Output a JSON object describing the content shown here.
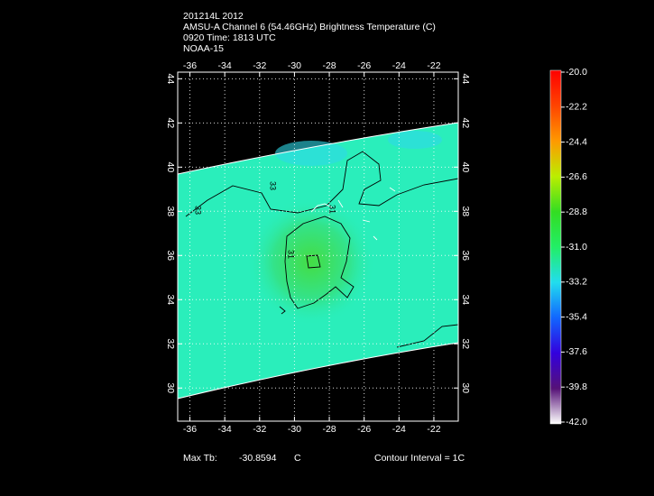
{
  "header": {
    "lines": [
      "201214L 2012",
      "AMSU-A Channel 6 (54.46GHz) Brightness Temperature (C)",
      "0920 Time: 1813 UTC",
      "NOAA-15"
    ]
  },
  "map": {
    "xlim": [
      -36.7,
      -20.6
    ],
    "xticks": [
      -36,
      -34,
      -32,
      -30,
      -28,
      -26,
      -24,
      -22
    ],
    "ylim": [
      28.5,
      44.3
    ],
    "yticks": [
      30,
      32,
      34,
      36,
      38,
      40,
      42,
      44
    ],
    "contour_labels": [
      "33",
      "33",
      "31",
      "31"
    ]
  },
  "colorbar": {
    "ticks": [
      {
        "value": -20,
        "label": "-20.0"
      },
      {
        "value": -22.2,
        "label": "-22.2"
      },
      {
        "value": -24.4,
        "label": "-24.4"
      },
      {
        "value": -26.6,
        "label": "-26.6"
      },
      {
        "value": -28.8,
        "label": "-28.8"
      },
      {
        "value": -31,
        "label": "-31.0"
      },
      {
        "value": -33.2,
        "label": "-33.2"
      },
      {
        "value": -35.4,
        "label": "-35.4"
      },
      {
        "value": -37.6,
        "label": "-37.6"
      },
      {
        "value": -39.8,
        "label": "-39.8"
      },
      {
        "value": -42,
        "label": "-42.0"
      }
    ],
    "lim": [
      -42,
      -20
    ]
  },
  "footer": {
    "max_label": "Max Tb:",
    "max_value": "-30.8594",
    "unit": "C",
    "contour_interval": "Contour Interval = 1C"
  }
}
